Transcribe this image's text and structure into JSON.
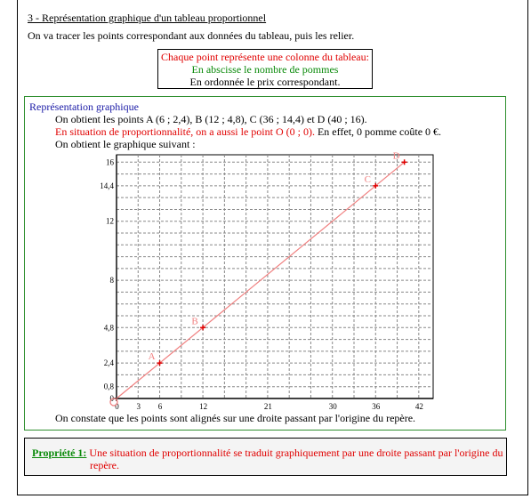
{
  "section_title": "3 - Représentation graphique d'un tableau proportionnel",
  "intro": "On va tracer les points correspondant aux données du tableau, puis les relier.",
  "info_box": {
    "line1": "Chaque point représente une colonne du tableau:",
    "line2": "En abscisse le nombre de pommes",
    "line3": "En ordonnée le prix correspondant."
  },
  "graph_section": {
    "heading": "Représentation graphique",
    "points_line": "On obtient les points A (6 ; 2,4), B (12 ; 4,8), C (36 ; 14,4) et D (40 ; 16).",
    "proportionality_red": "En situation de proportionnalité, on a aussi le point O (0 ; 0).",
    "proportionality_black": " En effet, 0 pomme coûte 0 €.",
    "graph_intro": "On obtient le graphique suivant :",
    "conclusion": "On constate que les points sont alignés sur une droite passant par l'origine du repère."
  },
  "property": {
    "label": "Propriété 1:",
    "text_line1": " Une situation de proportionnalité se traduit graphiquement par une droite passant par l'origine du",
    "text_line2": "repère."
  },
  "colors": {
    "red": "#e00000",
    "green": "#0a8a0a",
    "blue": "#1a1aa6",
    "line": "#f08080"
  },
  "chart_data": {
    "type": "line",
    "title": "",
    "xlabel": "",
    "ylabel": "",
    "xlim": [
      0,
      44
    ],
    "ylim": [
      0,
      16.5
    ],
    "x_ticks": [
      0,
      3,
      6,
      12,
      21,
      30,
      36,
      42
    ],
    "y_ticks": [
      0,
      0.8,
      2.4,
      4.8,
      8,
      12,
      14.4,
      16
    ],
    "x_tick_labels": [
      "0",
      "3",
      "6",
      "12",
      "21",
      "30",
      "36",
      "42"
    ],
    "y_tick_labels": [
      "0",
      "0,8",
      "2,4",
      "4,8",
      "8",
      "12",
      "14,4",
      "16"
    ],
    "grid": true,
    "points": [
      {
        "label": "O",
        "x": 0,
        "y": 0
      },
      {
        "label": "A",
        "x": 6,
        "y": 2.4
      },
      {
        "label": "B",
        "x": 12,
        "y": 4.8
      },
      {
        "label": "C",
        "x": 36,
        "y": 14.4
      },
      {
        "label": "D",
        "x": 40,
        "y": 16
      }
    ]
  }
}
